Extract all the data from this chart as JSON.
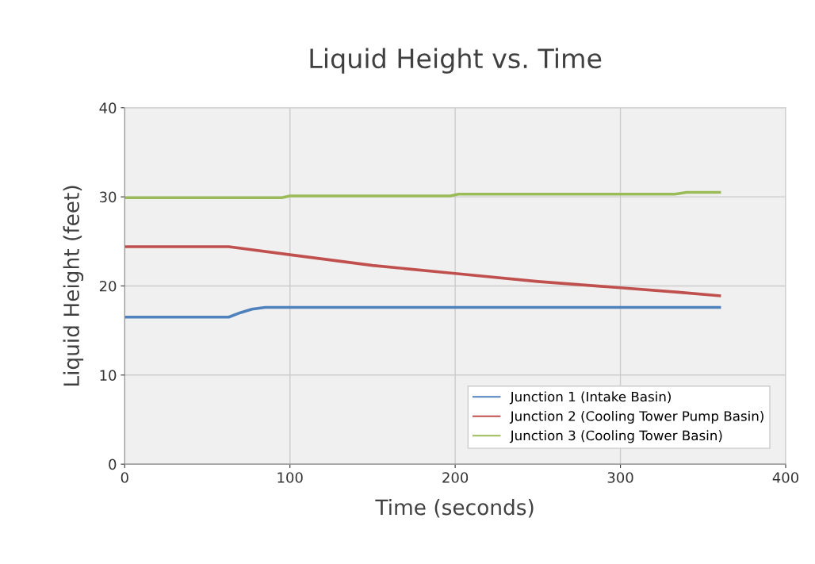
{
  "chart_data": {
    "type": "line",
    "title": "Liquid Height vs. Time",
    "xlabel": "Time (seconds)",
    "ylabel": "Liquid Height (feet)",
    "xlim": [
      0,
      400
    ],
    "xticks": [
      0,
      100,
      200,
      300,
      400
    ],
    "ylim": [
      0,
      40
    ],
    "yticks": [
      0,
      10,
      20,
      30,
      40
    ],
    "grid": true,
    "legend": "bottom right",
    "line_style": "solid",
    "series": [
      {
        "name": "Junction 1 (Intake Basin)",
        "color": "#4f81bd",
        "x": [
          0,
          63,
          70,
          77,
          85,
          100,
          200,
          300,
          360
        ],
        "values": [
          16.5,
          16.5,
          17.0,
          17.4,
          17.6,
          17.6,
          17.6,
          17.6,
          17.6
        ]
      },
      {
        "name": "Junction 2 (Cooling Tower Pump Basin)",
        "color": "#c0504d",
        "x": [
          0,
          63,
          100,
          150,
          200,
          250,
          300,
          335,
          360
        ],
        "values": [
          24.4,
          24.4,
          23.5,
          22.3,
          21.4,
          20.5,
          19.8,
          19.3,
          18.9
        ]
      },
      {
        "name": "Junction 3 (Cooling Tower Basin)",
        "color": "#9bbb59",
        "x": [
          0,
          95,
          100,
          197,
          202,
          333,
          340,
          360
        ],
        "values": [
          29.9,
          29.9,
          30.1,
          30.1,
          30.3,
          30.3,
          30.5,
          30.5
        ]
      }
    ]
  }
}
